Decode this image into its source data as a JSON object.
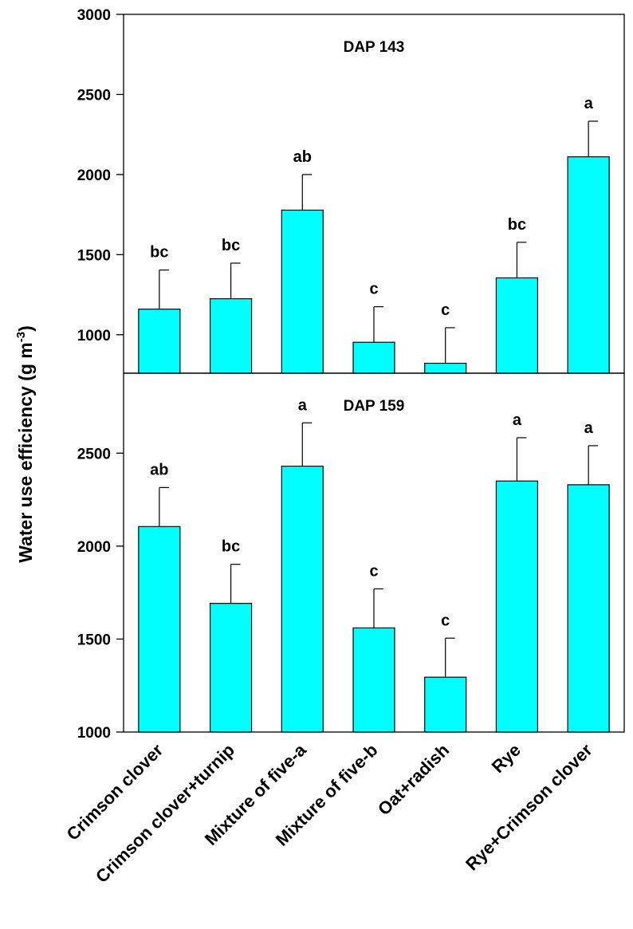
{
  "chart_data": {
    "type": "bar",
    "ylabel": "Water use efficiency (g m",
    "ylabel_sup": "-3",
    "ylabel_close": ")",
    "categories": [
      "Crimson clover",
      "Crimson clover+turnip",
      "Mixture of five-a",
      "Mixture of five-b",
      "Oat+radish",
      "Rye",
      "Rye+Crimson clover"
    ],
    "bar_color": "#00ffff",
    "grid": false,
    "panels": [
      {
        "title": "DAP 143",
        "ylim": [
          760,
          3000
        ],
        "yticks": [
          1000,
          1500,
          2000,
          2500,
          3000
        ],
        "ytick_labels": [
          "1000",
          "1500",
          "2000",
          "2500",
          "3000"
        ],
        "values": [
          1160,
          1225,
          1778,
          953,
          822,
          1355,
          2111
        ],
        "errors": [
          244,
          222,
          222,
          222,
          222,
          222,
          222
        ],
        "significance": [
          "bc",
          "bc",
          "ab",
          "c",
          "c",
          "bc",
          "a"
        ]
      },
      {
        "title": "DAP 159",
        "ylim": [
          1000,
          2930
        ],
        "yticks": [
          1000,
          1500,
          2000,
          2500
        ],
        "ytick_labels": [
          "1000",
          "1500",
          "2000",
          "2500"
        ],
        "values": [
          2105,
          1692,
          2430,
          1560,
          1295,
          2350,
          2330
        ],
        "errors": [
          210,
          210,
          233,
          210,
          210,
          233,
          210
        ],
        "significance": [
          "ab",
          "bc",
          "a",
          "c",
          "c",
          "a",
          "a"
        ]
      }
    ]
  }
}
